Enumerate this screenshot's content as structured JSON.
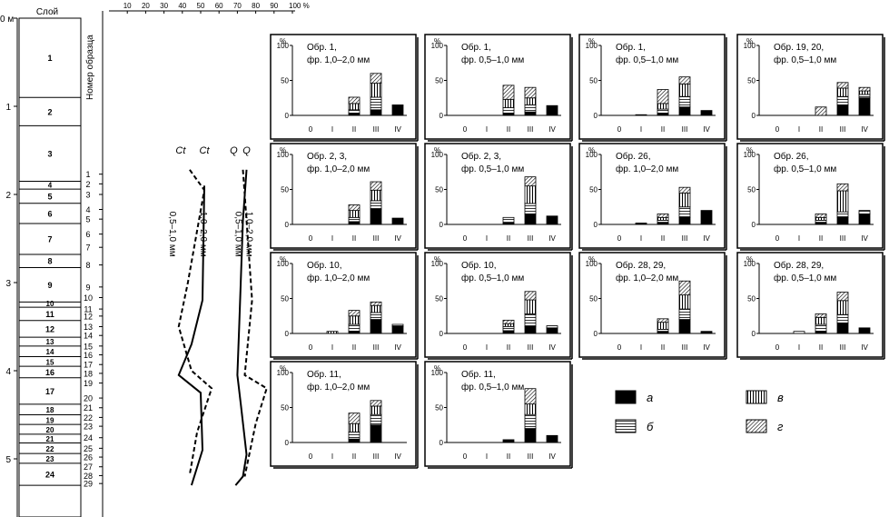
{
  "column": {
    "depth_unit": "м",
    "depth_ticks": [
      {
        "label": "0 м",
        "depth": 0
      },
      {
        "label": "1",
        "depth": 1
      },
      {
        "label": "2",
        "depth": 2
      },
      {
        "label": "3",
        "depth": 3
      },
      {
        "label": "4",
        "depth": 4
      },
      {
        "label": "5",
        "depth": 5
      }
    ],
    "layer_header": "Слой",
    "sample_header": "Номер образца",
    "layers": [
      {
        "label": "1",
        "top": 0,
        "bottom": 0.9
      },
      {
        "label": "2",
        "top": 0.9,
        "bottom": 1.22
      },
      {
        "label": "3",
        "top": 1.22,
        "bottom": 1.85
      },
      {
        "label": "4",
        "top": 1.85,
        "bottom": 1.94
      },
      {
        "label": "5",
        "top": 1.94,
        "bottom": 2.1
      },
      {
        "label": "6",
        "top": 2.1,
        "bottom": 2.33
      },
      {
        "label": "7",
        "top": 2.33,
        "bottom": 2.68
      },
      {
        "label": "8",
        "top": 2.68,
        "bottom": 2.83
      },
      {
        "label": "9",
        "top": 2.83,
        "bottom": 3.22
      },
      {
        "label": "10",
        "top": 3.22,
        "bottom": 3.28
      },
      {
        "label": "11",
        "top": 3.28,
        "bottom": 3.43
      },
      {
        "label": "12",
        "top": 3.43,
        "bottom": 3.62
      },
      {
        "label": "13",
        "top": 3.62,
        "bottom": 3.72
      },
      {
        "label": "14",
        "top": 3.72,
        "bottom": 3.84
      },
      {
        "label": "15",
        "top": 3.84,
        "bottom": 3.95
      },
      {
        "label": "16",
        "top": 3.95,
        "bottom": 4.08
      },
      {
        "label": "17",
        "top": 4.08,
        "bottom": 4.38
      },
      {
        "label": "18",
        "top": 4.38,
        "bottom": 4.5
      },
      {
        "label": "19",
        "top": 4.5,
        "bottom": 4.61
      },
      {
        "label": "20",
        "top": 4.61,
        "bottom": 4.72
      },
      {
        "label": "21",
        "top": 4.72,
        "bottom": 4.82
      },
      {
        "label": "22",
        "top": 4.82,
        "bottom": 4.94
      },
      {
        "label": "23",
        "top": 4.94,
        "bottom": 5.05
      },
      {
        "label": "24",
        "top": 5.05,
        "bottom": 5.3
      }
    ],
    "samples": [
      {
        "label": "1",
        "depth": 1.77
      },
      {
        "label": "2",
        "depth": 1.88
      },
      {
        "label": "3",
        "depth": 2.0
      },
      {
        "label": "4",
        "depth": 2.17
      },
      {
        "label": "5",
        "depth": 2.28
      },
      {
        "label": "6",
        "depth": 2.45
      },
      {
        "label": "7",
        "depth": 2.6
      },
      {
        "label": "8",
        "depth": 2.8
      },
      {
        "label": "9",
        "depth": 3.05
      },
      {
        "label": "10",
        "depth": 3.17
      },
      {
        "label": "11",
        "depth": 3.3
      },
      {
        "label": "12",
        "depth": 3.38
      },
      {
        "label": "13",
        "depth": 3.5
      },
      {
        "label": "14",
        "depth": 3.6
      },
      {
        "label": "15",
        "depth": 3.72
      },
      {
        "label": "16",
        "depth": 3.82
      },
      {
        "label": "17",
        "depth": 3.93
      },
      {
        "label": "18",
        "depth": 4.03
      },
      {
        "label": "19",
        "depth": 4.14
      },
      {
        "label": "20",
        "depth": 4.31
      },
      {
        "label": "21",
        "depth": 4.42
      },
      {
        "label": "22",
        "depth": 4.53
      },
      {
        "label": "23",
        "depth": 4.63
      },
      {
        "label": "24",
        "depth": 4.76
      },
      {
        "label": "25",
        "depth": 4.88
      },
      {
        "label": "26",
        "depth": 4.98
      },
      {
        "label": "27",
        "depth": 5.09
      },
      {
        "label": "28",
        "depth": 5.19
      },
      {
        "label": "29",
        "depth": 5.28
      }
    ]
  },
  "chart_data": [
    {
      "type": "line",
      "x_unit_label": "%",
      "x_ticks": [
        "10",
        "20",
        "30",
        "40",
        "50",
        "60",
        "70",
        "80",
        "90",
        "100 %"
      ],
      "xlim": [
        0,
        100
      ],
      "series": [
        {
          "name": "Ct 0,5–1,0 мм",
          "top_label": "Ct",
          "label": "0,5–1,0 мм",
          "style": "dashed",
          "points": [
            [
              44,
              1.72
            ],
            [
              52,
              1.95
            ],
            [
              43,
              3.0
            ],
            [
              38,
              3.5
            ],
            [
              45,
              4.0
            ],
            [
              56,
              4.2
            ],
            [
              48,
              4.7
            ],
            [
              44,
              5.18
            ]
          ]
        },
        {
          "name": "Ct 1,0–2,0 мм",
          "top_label": "Ct",
          "label": "1,0–2,0 мм",
          "style": "solid",
          "points": [
            [
              52,
              1.9
            ],
            [
              51,
              3.2
            ],
            [
              45,
              3.7
            ],
            [
              38,
              4.05
            ],
            [
              50,
              4.25
            ],
            [
              51,
              4.9
            ],
            [
              45,
              5.3
            ]
          ]
        },
        {
          "name": "Q 1,0–2,0 мм",
          "top_label": "Q",
          "label": "1,0–2,0 мм",
          "style": "solid",
          "points": [
            [
              75,
              1.72
            ],
            [
              73,
              2.3
            ],
            [
              71,
              3.5
            ],
            [
              70,
              4.05
            ],
            [
              72,
              4.4
            ],
            [
              75,
              4.95
            ],
            [
              73,
              5.2
            ],
            [
              69,
              5.3
            ]
          ]
        },
        {
          "name": "Q 0,5–1,0 мм",
          "top_label": "Q",
          "label": "0,5–1,0 мм",
          "style": "dashed",
          "points": [
            [
              73,
              1.72
            ],
            [
              74,
              2.0
            ],
            [
              78,
              3.2
            ],
            [
              74,
              4.05
            ],
            [
              86,
              4.2
            ],
            [
              80,
              4.6
            ],
            [
              76,
              5.0
            ],
            [
              74,
              5.2
            ]
          ]
        }
      ]
    },
    {
      "type": "bar",
      "stacked": true,
      "y_unit_label": "%",
      "y_ticks": [
        "0",
        "50",
        "100"
      ],
      "ylim": [
        0,
        100
      ],
      "categories": [
        "0",
        "I",
        "II",
        "III",
        "IV"
      ],
      "legend": [
        {
          "key": "а",
          "pattern": "solid"
        },
        {
          "key": "б",
          "pattern": "horizontal"
        },
        {
          "key": "в",
          "pattern": "vertical"
        },
        {
          "key": "г",
          "pattern": "diagonal"
        }
      ],
      "panels": [
        {
          "id": "p1",
          "title": "Обр. 1,",
          "subtitle": "фр. 1,0–2,0 мм",
          "bars": [
            [
              0,
              0,
              0,
              0
            ],
            [
              0,
              0,
              0,
              0
            ],
            [
              3,
              5,
              9,
              9
            ],
            [
              8,
              18,
              20,
              14
            ],
            [
              15,
              0,
              0,
              0
            ]
          ]
        },
        {
          "id": "p2",
          "title": "Обр. 1,",
          "subtitle": "фр. 0,5–1,0 мм",
          "bars": [
            [
              0,
              0,
              0,
              0
            ],
            [
              0,
              0,
              0,
              0
            ],
            [
              3,
              8,
              12,
              20
            ],
            [
              5,
              10,
              10,
              15
            ],
            [
              14,
              0,
              0,
              0
            ]
          ]
        },
        {
          "id": "p3",
          "title": "Обр. 1,",
          "subtitle": "фр. 0,5–1,0 мм",
          "bars": [
            [
              0,
              0,
              0,
              0
            ],
            [
              1,
              0,
              0,
              0
            ],
            [
              3,
              6,
              8,
              20
            ],
            [
              12,
              15,
              18,
              10
            ],
            [
              7,
              0,
              0,
              0
            ]
          ]
        },
        {
          "id": "p4",
          "title": "Обр. 19, 20,",
          "subtitle": "фр. 0,5–1,0 мм",
          "bars": [
            [
              0,
              0,
              0,
              0
            ],
            [
              0,
              0,
              0,
              0
            ],
            [
              0,
              0,
              0,
              12
            ],
            [
              15,
              12,
              12,
              8
            ],
            [
              25,
              5,
              5,
              5
            ]
          ]
        },
        {
          "id": "p5",
          "title": "Обр. 2, 3,",
          "subtitle": "фр. 1,0–2,0 мм",
          "bars": [
            [
              0,
              0,
              0,
              0
            ],
            [
              0,
              0,
              0,
              0
            ],
            [
              4,
              6,
              10,
              8
            ],
            [
              22,
              12,
              15,
              12
            ],
            [
              9,
              0,
              0,
              0
            ]
          ]
        },
        {
          "id": "p6",
          "title": "Обр. 2, 3,",
          "subtitle": "фр. 0,5–1,0 мм",
          "bars": [
            [
              0,
              0,
              0,
              0
            ],
            [
              0,
              0,
              0,
              0
            ],
            [
              2,
              8,
              0,
              0
            ],
            [
              15,
              15,
              25,
              13
            ],
            [
              12,
              0,
              0,
              0
            ]
          ]
        },
        {
          "id": "p7",
          "title": "Обр. 26,",
          "subtitle": "фр. 1,0–2,0 мм",
          "bars": [
            [
              0,
              0,
              0,
              0
            ],
            [
              2,
              0,
              0,
              0
            ],
            [
              2,
              4,
              4,
              5
            ],
            [
              10,
              15,
              20,
              8
            ],
            [
              20,
              0,
              0,
              0
            ]
          ]
        },
        {
          "id": "p8",
          "title": "Обр. 26,",
          "subtitle": "фр. 0,5–1,0 мм",
          "bars": [
            [
              0,
              0,
              0,
              0
            ],
            [
              0,
              0,
              0,
              0
            ],
            [
              2,
              4,
              4,
              5
            ],
            [
              10,
              8,
              30,
              10
            ],
            [
              15,
              5,
              0,
              0
            ]
          ]
        },
        {
          "id": "p9",
          "title": "Обр. 10,",
          "subtitle": "фр. 1,0–2,0 мм",
          "bars": [
            [
              0,
              0,
              0,
              0
            ],
            [
              0,
              0,
              3,
              0
            ],
            [
              3,
              10,
              12,
              8
            ],
            [
              20,
              10,
              10,
              5
            ],
            [
              10,
              3,
              0,
              0
            ]
          ]
        },
        {
          "id": "p10",
          "title": "Обр. 10,",
          "subtitle": "фр. 0,5–1,0 мм",
          "bars": [
            [
              0,
              0,
              0,
              0
            ],
            [
              0,
              0,
              0,
              0
            ],
            [
              4,
              6,
              4,
              5
            ],
            [
              10,
              18,
              20,
              12
            ],
            [
              8,
              3,
              0,
              0
            ]
          ]
        },
        {
          "id": "p11",
          "title": "Обр. 28, 29,",
          "subtitle": "фр. 1,0–2,0 мм",
          "bars": [
            [
              0,
              0,
              0,
              0
            ],
            [
              0,
              0,
              0,
              0
            ],
            [
              2,
              4,
              10,
              5
            ],
            [
              20,
              15,
              20,
              20
            ],
            [
              3,
              0,
              0,
              0
            ]
          ]
        },
        {
          "id": "p12",
          "title": "Обр. 28, 29,",
          "subtitle": "фр. 0,5–1,0 мм",
          "bars": [
            [
              0,
              0,
              0,
              0
            ],
            [
              0,
              3,
              0,
              0
            ],
            [
              3,
              10,
              10,
              5
            ],
            [
              15,
              12,
              20,
              12
            ],
            [
              8,
              0,
              0,
              0
            ]
          ]
        },
        {
          "id": "p13",
          "title": "Обр. 11,",
          "subtitle": "фр. 1,0–2,0 мм",
          "bars": [
            [
              0,
              0,
              0,
              0
            ],
            [
              0,
              0,
              0,
              0
            ],
            [
              5,
              10,
              12,
              15
            ],
            [
              25,
              15,
              12,
              8
            ],
            [
              0,
              0,
              0,
              0
            ]
          ]
        },
        {
          "id": "p14",
          "title": "Обр. 11,",
          "subtitle": "фр. 0,5–1,0 мм",
          "bars": [
            [
              0,
              0,
              0,
              0
            ],
            [
              0,
              0,
              0,
              0
            ],
            [
              4,
              0,
              0,
              0
            ],
            [
              20,
              20,
              15,
              22
            ],
            [
              10,
              0,
              0,
              0
            ]
          ]
        }
      ]
    }
  ]
}
